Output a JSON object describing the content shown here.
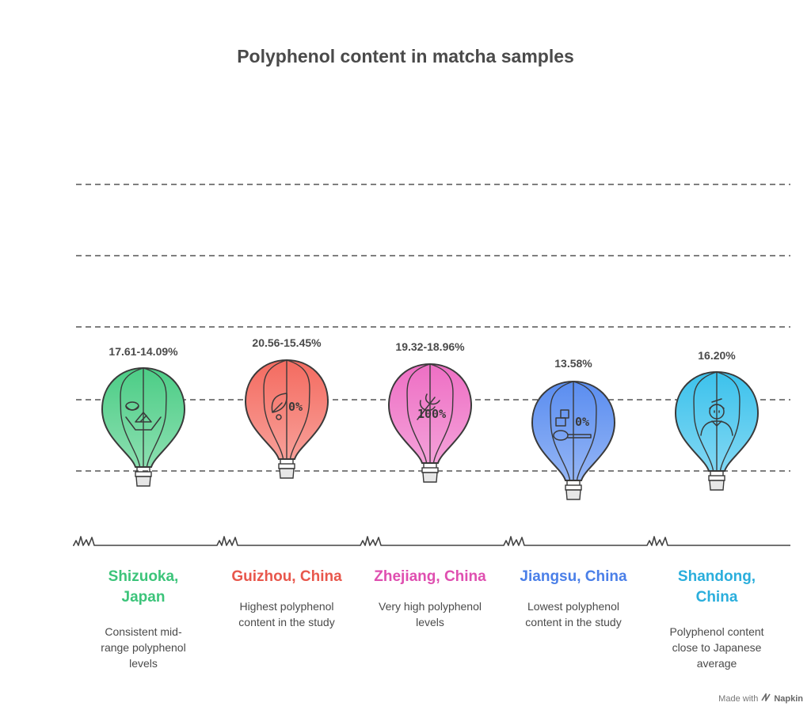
{
  "title": "Polyphenol content in matcha samples",
  "credit": {
    "prefix": "Made with",
    "brand": "Napkin"
  },
  "balloons": [
    {
      "value": "17.61-14.09%",
      "region": "Shizuoka,\nJapan",
      "region_lines": [
        "Shizuoka,",
        "Japan"
      ],
      "desc_lines": [
        "Consistent mid-",
        "range polyphenol",
        "levels"
      ],
      "color": "#4ccd86",
      "text_color": "#3cc47a",
      "icon": "tea-ceremony-icon",
      "icon_text": ""
    },
    {
      "value": "20.56-15.45%",
      "region_lines": [
        "Guizhou, China"
      ],
      "desc_lines": [
        "Highest polyphenol",
        "content in the study"
      ],
      "color": "#f46b60",
      "text_color": "#e8574c",
      "icon": "percent-leaf-icon",
      "icon_text": "0%"
    },
    {
      "value": "19.32-18.96%",
      "region_lines": [
        "Zhejiang, China"
      ],
      "desc_lines": [
        "Very high polyphenol",
        "levels"
      ],
      "color": "#ee6fc4",
      "text_color": "#df4fb0",
      "icon": "wheat-icon",
      "icon_text": "100%"
    },
    {
      "value": "13.58%",
      "region_lines": [
        "Jiangsu, China"
      ],
      "desc_lines": [
        "Lowest polyphenol",
        "content in the study"
      ],
      "color": "#5a8df0",
      "text_color": "#4a7fe8",
      "icon": "measuring-spoon-icon",
      "icon_text": "0%"
    },
    {
      "value": "16.20%",
      "region_lines": [
        "Shandong,",
        "China"
      ],
      "desc_lines": [
        "Polyphenol content",
        "close to Japanese",
        "average"
      ],
      "color": "#3cc2ec",
      "text_color": "#2aaedc",
      "icon": "person-icon",
      "icon_text": ""
    }
  ]
}
